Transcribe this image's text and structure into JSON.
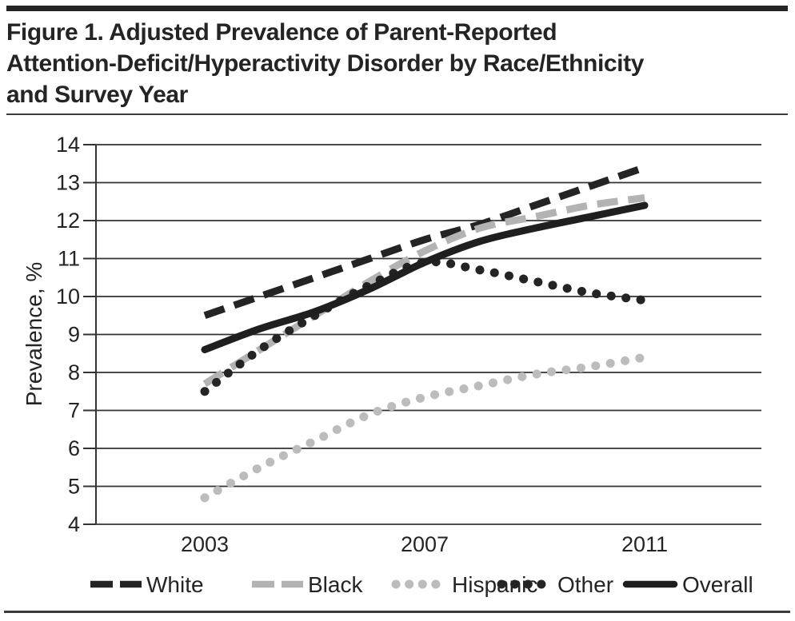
{
  "figure": {
    "title_lines": [
      "Figure 1. Adjusted Prevalence of Parent-Reported",
      "Attention-Deficit/Hyperactivity Disorder by Race/Ethnicity",
      "and Survey Year"
    ]
  },
  "colors": {
    "ink": "#242424",
    "gray_series": "#b3b3b3",
    "light_gray_series": "#bcbcbc",
    "rule": "#3a3a3a"
  },
  "chart_data": {
    "type": "line",
    "title": "Figure 1. Adjusted Prevalence of Parent-Reported Attention-Deficit/Hyperactivity Disorder by Race/Ethnicity and Survey Year",
    "xlabel": "",
    "ylabel": "Prevalence, %",
    "ylim": [
      4,
      14
    ],
    "y_ticks": [
      4,
      5,
      6,
      7,
      8,
      9,
      10,
      11,
      12,
      13,
      14
    ],
    "x": [
      2003,
      2004,
      2005,
      2006,
      2007,
      2008,
      2009,
      2010,
      2011
    ],
    "x_tick_labels": [
      "2003",
      "2007",
      "2011"
    ],
    "grid": true,
    "legend_position": "bottom",
    "series": [
      {
        "name": "White",
        "style": "dashed",
        "color": "#242424",
        "values": [
          9.5,
          10.0,
          10.5,
          11.0,
          11.5,
          11.9,
          12.4,
          12.9,
          13.4
        ]
      },
      {
        "name": "Black",
        "style": "dashed",
        "color": "#b3b3b3",
        "values": [
          7.7,
          8.6,
          9.5,
          10.4,
          11.2,
          11.8,
          12.1,
          12.4,
          12.6
        ]
      },
      {
        "name": "Hispanic",
        "style": "dotted",
        "color": "#bcbcbc",
        "values": [
          4.7,
          5.5,
          6.2,
          6.9,
          7.35,
          7.65,
          7.95,
          8.15,
          8.4
        ]
      },
      {
        "name": "Other",
        "style": "dotted",
        "color": "#242424",
        "values": [
          7.5,
          8.6,
          9.5,
          10.3,
          10.9,
          10.7,
          10.4,
          10.1,
          9.9
        ]
      },
      {
        "name": "Overall",
        "style": "solid",
        "color": "#1f1f1f",
        "values": [
          8.6,
          9.15,
          9.6,
          10.2,
          10.9,
          11.45,
          11.8,
          12.1,
          12.4
        ]
      }
    ]
  }
}
